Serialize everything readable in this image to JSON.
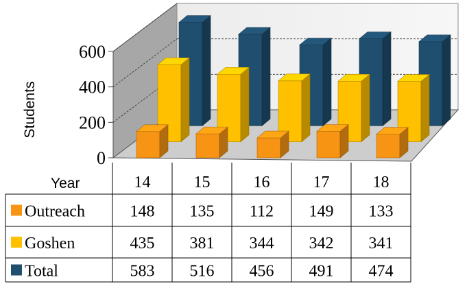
{
  "chart_data": {
    "type": "bar",
    "categories": [
      "14",
      "15",
      "16",
      "17",
      "18"
    ],
    "xlabel": "Year",
    "ylabel": "Students",
    "ylim": [
      0,
      600
    ],
    "yticks": [
      "0",
      "200",
      "400",
      "600"
    ],
    "series": [
      {
        "name": "Outreach",
        "values": [
          148,
          135,
          112,
          149,
          133
        ],
        "color": "#F79413"
      },
      {
        "name": "Goshen",
        "values": [
          435,
          381,
          344,
          342,
          341
        ],
        "color": "#FFC000"
      },
      {
        "name": "Total",
        "values": [
          583,
          516,
          456,
          491,
          474
        ],
        "color": "#1F4E6E"
      }
    ],
    "grid": "dashed horizontal lines on back wall",
    "legend": "data table below chart",
    "view": "3D"
  }
}
